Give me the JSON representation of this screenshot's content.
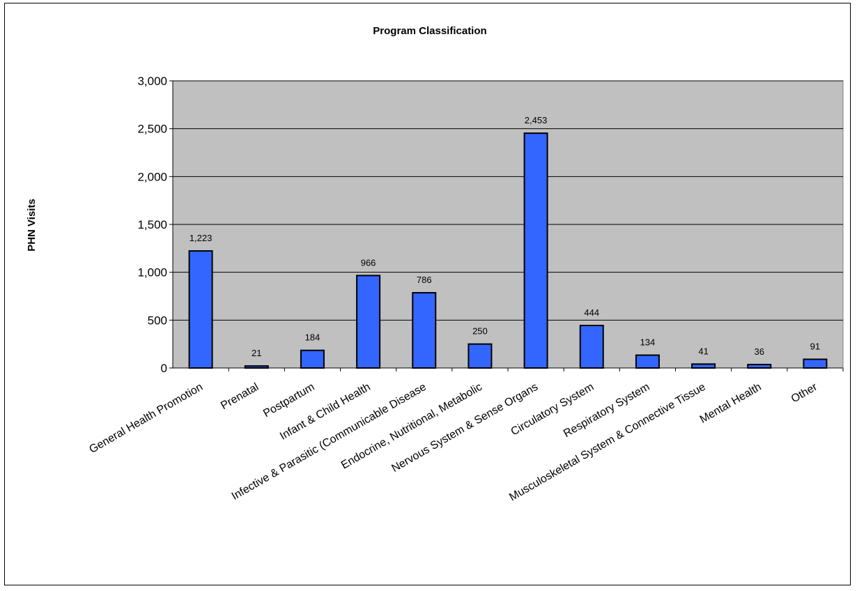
{
  "chart_data": {
    "type": "bar",
    "title": "Program Classification",
    "xlabel": "",
    "ylabel": "PHN Visits",
    "ylim": [
      0,
      3000
    ],
    "yticks": [
      0,
      500,
      1000,
      1500,
      2000,
      2500,
      3000
    ],
    "ytick_labels": [
      "0",
      "500",
      "1,000",
      "1,500",
      "2,000",
      "2,500",
      "3,000"
    ],
    "grid": true,
    "legend": "none",
    "categories": [
      "General Health Promotion",
      "Prenatal",
      "Postpartum",
      "Infant & Child Health",
      "Infective & Parasitic (Communicable Disease",
      "Endocrine, Nutritional, Metabolic",
      "Nervous System & Sense Organs",
      "Circulatory System",
      "Respiratory System",
      "Musculoskeletal System & Connective Tissue",
      "Mental Health",
      "Other"
    ],
    "values": [
      1223,
      21,
      184,
      966,
      786,
      250,
      2453,
      444,
      134,
      41,
      36,
      91
    ],
    "value_labels": [
      "1,223",
      "21",
      "184",
      "966",
      "786",
      "250",
      "2,453",
      "444",
      "134",
      "41",
      "36",
      "91"
    ],
    "colors": {
      "bar": "#3366FF",
      "plot_background": "#C0C0C0",
      "gridline": "#000000",
      "bar_outline": "#000000"
    }
  }
}
